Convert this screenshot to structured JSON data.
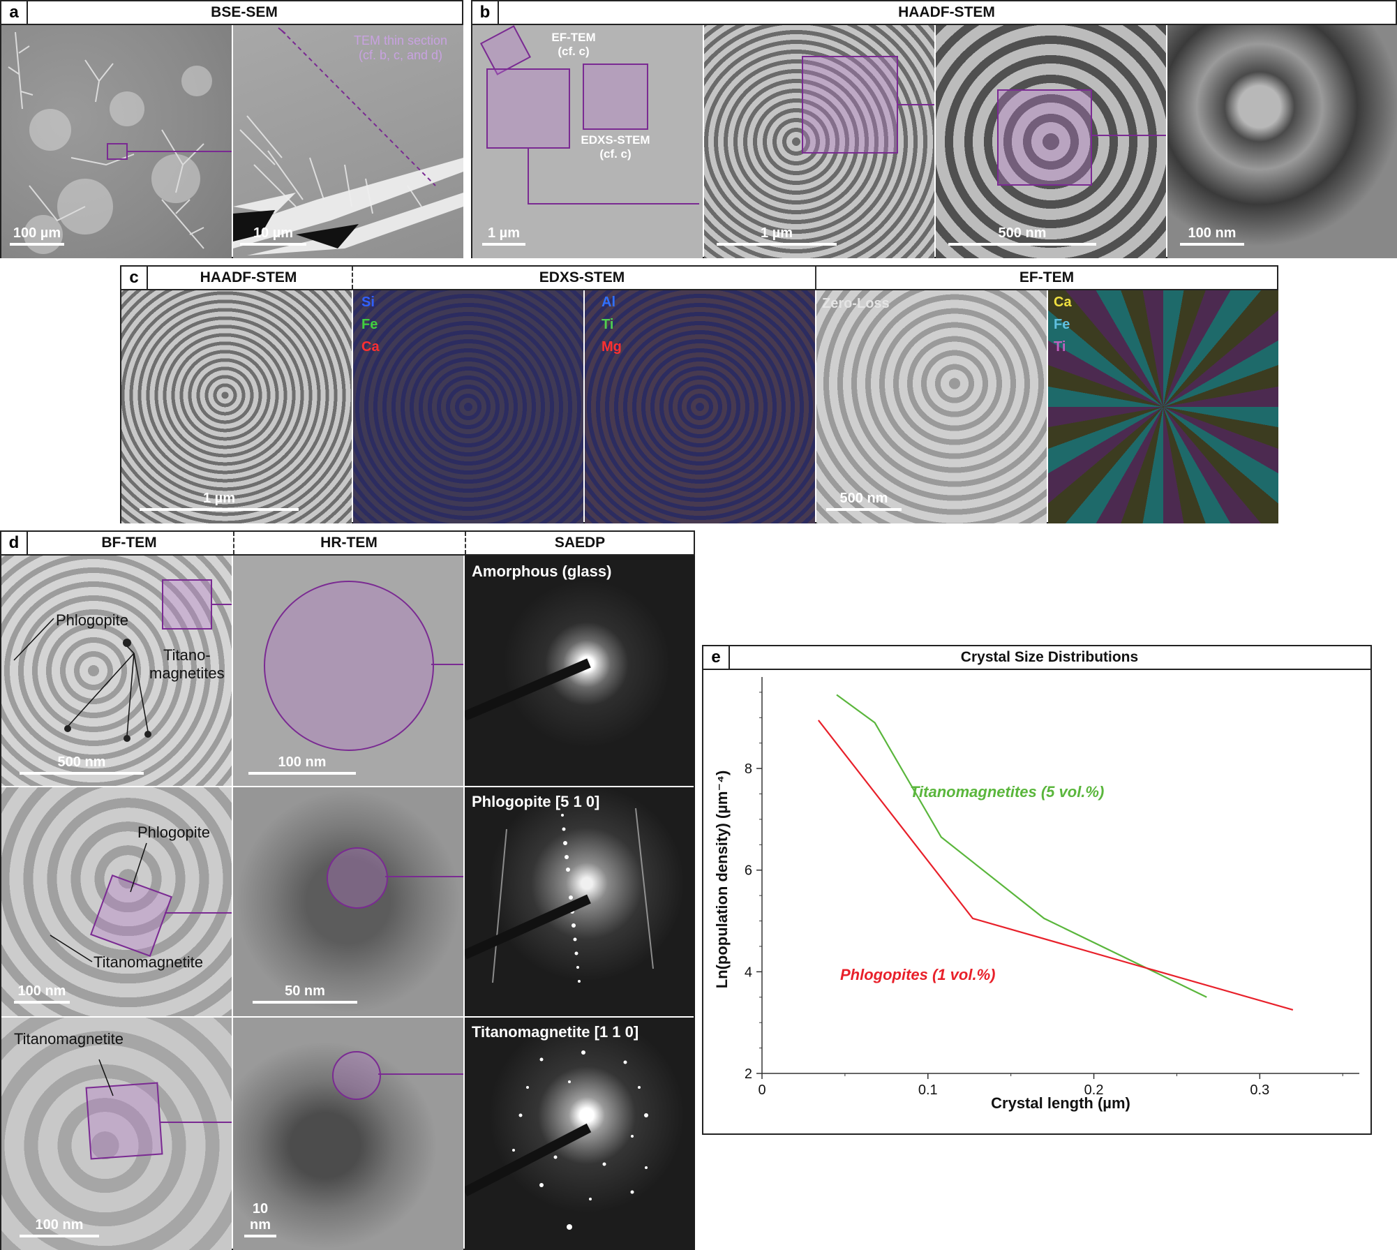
{
  "panel_a": {
    "letter": "a",
    "title": "BSE-SEM",
    "scale_left": "100 µm",
    "scale_right": "10 µm",
    "annotation": "TEM thin section\n(cf. b, c, and d)"
  },
  "panel_b": {
    "letter": "b",
    "title": "HAADF-STEM",
    "box1": "EF-TEM\n(cf. c)",
    "box2": "EDXS-STEM\n(cf. c)",
    "scales": [
      "1 µm",
      "1 µm",
      "500 nm",
      "100 nm"
    ]
  },
  "panel_c": {
    "letter": "c",
    "titles": [
      "HAADF-STEM",
      "EDXS-STEM",
      "EF-TEM"
    ],
    "scale_haadf": "1 µm",
    "scale_ef": "500 nm",
    "zero_loss": "Zero-Loss",
    "edxs1": [
      "Si",
      "Fe",
      "Ca"
    ],
    "edxs2": [
      "Al",
      "Ti",
      "Mg"
    ],
    "ef_map": [
      "Ca",
      "Fe",
      "Ti"
    ],
    "colors": {
      "si": "#3060ff",
      "fe": "#40d040",
      "ca": "#ff3030",
      "al": "#3070ff",
      "ti": "#50d050",
      "mg": "#ff3030",
      "ef_ca": "#f0e040",
      "ef_fe": "#60c0e0",
      "ef_ti": "#c060c0"
    }
  },
  "panel_d": {
    "letter": "d",
    "titles": [
      "BF-TEM",
      "HR-TEM",
      "SAEDP"
    ],
    "row1": {
      "labels": [
        "Phlogopite",
        "Titano-\nmagnetites"
      ],
      "scale_bf": "500 nm",
      "scale_hr": "100 nm",
      "saed": "Amorphous (glass)"
    },
    "row2": {
      "labels": [
        "Phlogopite",
        "Titanomagnetite"
      ],
      "scale_bf": "100 nm",
      "scale_hr": "50 nm",
      "saed": "Phlogopite [5 1 0]"
    },
    "row3": {
      "labels": [
        "Titanomagnetite"
      ],
      "scale_bf": "100 nm",
      "scale_hr": "10 nm",
      "saed": "Titanomagnetite [1 1 0]"
    }
  },
  "panel_e": {
    "letter": "e",
    "title": "Crystal Size Distributions"
  },
  "chart_data": {
    "type": "line",
    "title": "Crystal Size Distributions",
    "xlabel": "Crystal length (µm)",
    "ylabel": "Ln(population density) (µm⁻⁴)",
    "xlim": [
      0,
      0.36
    ],
    "ylim": [
      2,
      9.8
    ],
    "xticks": [
      0,
      0.1,
      0.2,
      0.3
    ],
    "yticks": [
      2,
      4,
      6,
      8
    ],
    "xtick_labels": [
      "0",
      "0.1",
      "0.2",
      "0.3"
    ],
    "ytick_labels": [
      "2",
      "4",
      "6",
      "8"
    ],
    "grid": false,
    "series": [
      {
        "name": "Titanomagnetites (5 vol.%)",
        "color": "#5ab63c",
        "x": [
          0.045,
          0.068,
          0.108,
          0.17,
          0.268
        ],
        "y": [
          9.45,
          8.9,
          6.65,
          5.05,
          3.5
        ]
      },
      {
        "name": "Phlogopites (1 vol.%)",
        "color": "#e8202a",
        "x": [
          0.034,
          0.127,
          0.32
        ],
        "y": [
          8.95,
          5.05,
          3.25
        ]
      }
    ]
  }
}
